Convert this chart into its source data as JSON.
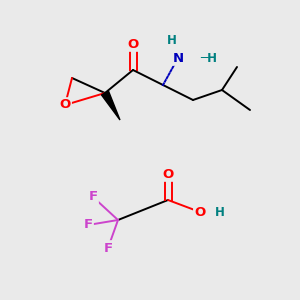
{
  "bg_color": "#eaeaea",
  "colors": {
    "O": "#ff0000",
    "N": "#0000bb",
    "F": "#cc44cc",
    "C": "#000000",
    "H": "#008080"
  },
  "font_size": 9.5,
  "line_width": 1.4
}
